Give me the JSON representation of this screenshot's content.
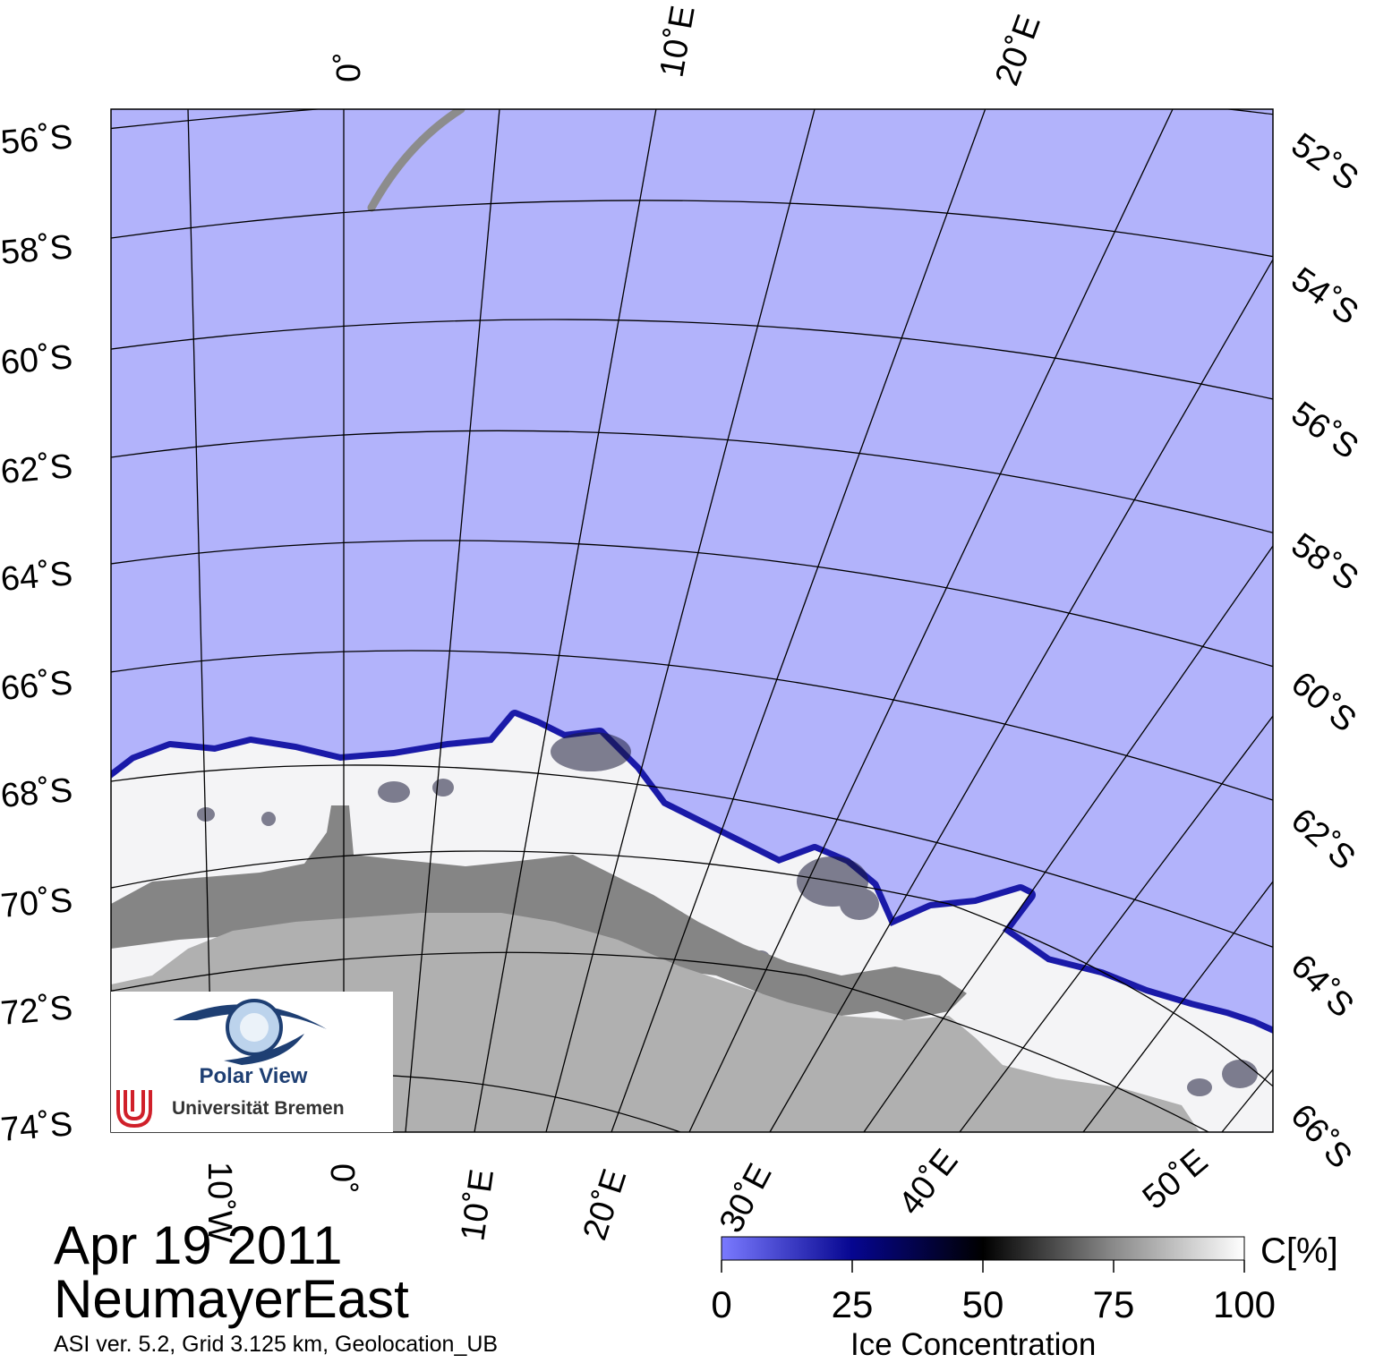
{
  "map": {
    "region": "NeumayerEast",
    "date": "Apr 19 2011",
    "info": "ASI ver. 5.2,  Grid 3.125 km, Geolocation_UB",
    "colors": {
      "open_water": "#b2b3fb",
      "land": "#b0b0b0",
      "ice_shelf": "#858585",
      "grid": "#000000",
      "missing_swath": "#8c8c8c"
    },
    "lat_labels_left": [
      "56˚S",
      "58˚S",
      "60˚S",
      "62˚S",
      "64˚S",
      "66˚S",
      "68˚S",
      "70˚S",
      "72˚S",
      "74˚S"
    ],
    "lat_labels_right": [
      "52˚S",
      "54˚S",
      "56˚S",
      "58˚S",
      "60˚S",
      "62˚S",
      "64˚S",
      "66˚S"
    ],
    "lon_labels_top": [
      "0˚",
      "10˚E",
      "20˚E"
    ],
    "lon_labels_bottom": [
      "10˚W",
      "0˚",
      "10˚E",
      "20˚E",
      "30˚E",
      "40˚E",
      "50˚E"
    ]
  },
  "logo": {
    "name": "Polar View",
    "institution": "Universität Bremen",
    "icons": [
      "eye-icon",
      "university-bremen-logo"
    ]
  },
  "legend": {
    "title": "Ice Concentration",
    "unit": "C[%]",
    "ticks": [
      "0",
      "25",
      "50",
      "75",
      "100"
    ],
    "min": 0,
    "max": 100,
    "gradient_stops": [
      {
        "value": 0,
        "color": "#7a7aff"
      },
      {
        "value": 25,
        "color": "#060690"
      },
      {
        "value": 50,
        "color": "#000000"
      },
      {
        "value": 75,
        "color": "#8a8a8a"
      },
      {
        "value": 100,
        "color": "#ffffff"
      }
    ]
  }
}
